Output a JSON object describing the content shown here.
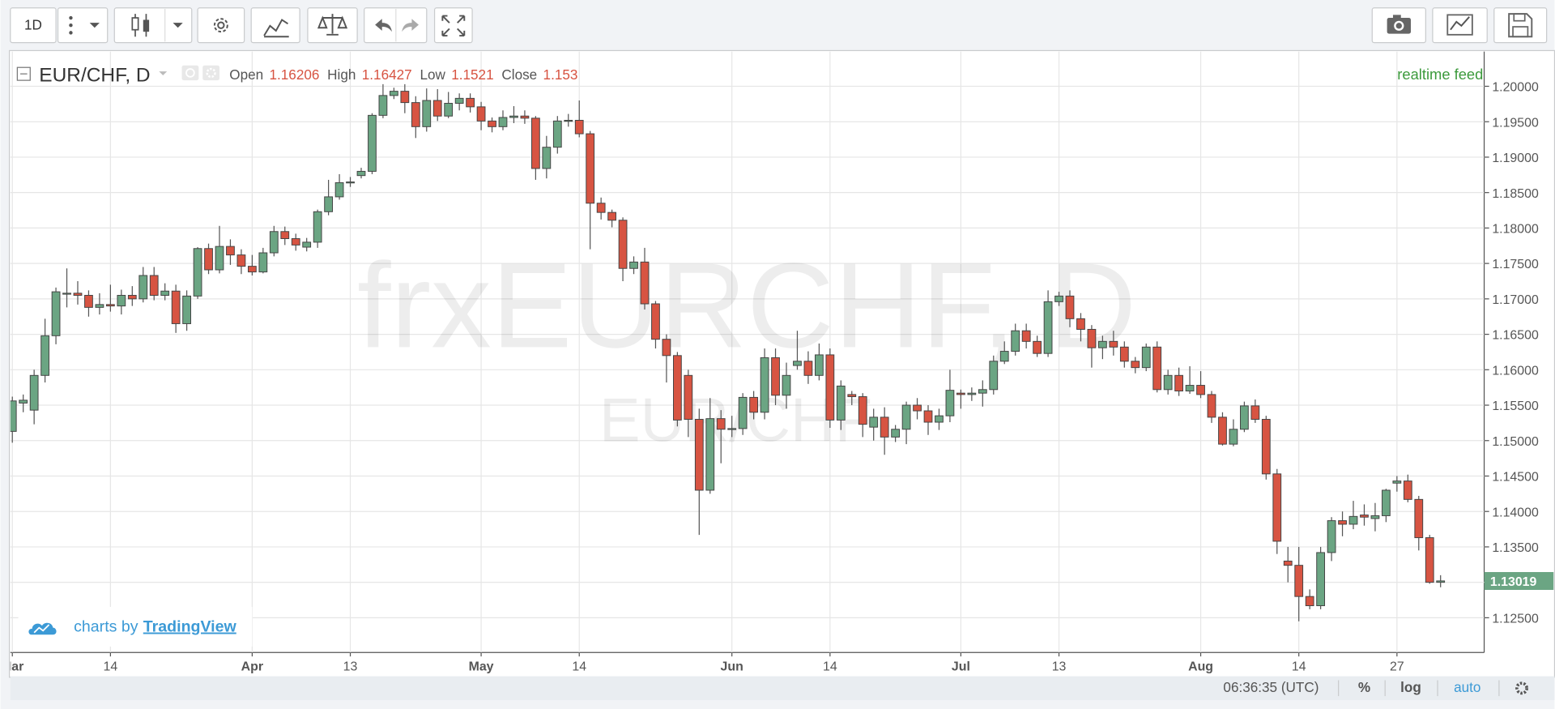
{
  "toolbar": {
    "interval": "1D"
  },
  "realtime": "realtime feed",
  "branding": {
    "prefix": "charts by",
    "name": "TradingView"
  },
  "status": {
    "time": "06:36:35 (UTC)",
    "percent": "%",
    "log": "log",
    "auto": "auto"
  },
  "chart_data": {
    "type": "candlestick",
    "title": "EUR/CHF, D",
    "watermark": "frxEURCHF, D",
    "watermark_sub": "EUR/CHF",
    "legend_labels": [
      "Open",
      "High",
      "Low",
      "Close"
    ],
    "legend_values": [
      1.16206,
      1.16427,
      1.1521,
      1.153
    ],
    "up_color": "#6ba583",
    "down_color": "#d75442",
    "grid": true,
    "last_price": 1.13019,
    "xlim": [
      -0.18,
      135
    ],
    "ylim": [
      1.1201,
      1.2049
    ],
    "xticks": [
      {
        "value": 0,
        "label": "Mar"
      },
      {
        "value": 9,
        "label": "14"
      },
      {
        "value": 22,
        "label": "Apr"
      },
      {
        "value": 31,
        "label": "13"
      },
      {
        "value": 43,
        "label": "May"
      },
      {
        "value": 52,
        "label": "14"
      },
      {
        "value": 66,
        "label": "Jun"
      },
      {
        "value": 75,
        "label": "14"
      },
      {
        "value": 87,
        "label": "Jul"
      },
      {
        "value": 96,
        "label": "13"
      },
      {
        "value": 109,
        "label": "Aug"
      },
      {
        "value": 118,
        "label": "14"
      },
      {
        "value": 127,
        "label": "27"
      }
    ],
    "yticks": [
      {
        "value": 1.125,
        "label": "1.12500"
      },
      {
        "value": 1.13,
        "label": "1.13000"
      },
      {
        "value": 1.135,
        "label": "1.13500"
      },
      {
        "value": 1.14,
        "label": "1.14000"
      },
      {
        "value": 1.145,
        "label": "1.14500"
      },
      {
        "value": 1.15,
        "label": "1.15000"
      },
      {
        "value": 1.155,
        "label": "1.15500"
      },
      {
        "value": 1.16,
        "label": "1.16000"
      },
      {
        "value": 1.165,
        "label": "1.16500"
      },
      {
        "value": 1.17,
        "label": "1.17000"
      },
      {
        "value": 1.175,
        "label": "1.17500"
      },
      {
        "value": 1.18,
        "label": "1.18000"
      },
      {
        "value": 1.185,
        "label": "1.18500"
      },
      {
        "value": 1.19,
        "label": "1.19000"
      },
      {
        "value": 1.195,
        "label": "1.19500"
      },
      {
        "value": 1.2,
        "label": "1.20000"
      }
    ],
    "x": [
      0,
      1,
      2,
      3,
      4,
      5,
      6,
      7,
      8,
      9,
      10,
      11,
      12,
      13,
      14,
      15,
      16,
      17,
      18,
      19,
      20,
      21,
      22,
      23,
      24,
      25,
      26,
      27,
      28,
      29,
      30,
      31,
      32,
      33,
      34,
      35,
      36,
      37,
      38,
      39,
      40,
      41,
      42,
      43,
      44,
      45,
      46,
      47,
      48,
      49,
      50,
      51,
      52,
      53,
      54,
      55,
      56,
      57,
      58,
      59,
      60,
      61,
      62,
      63,
      64,
      65,
      66,
      67,
      68,
      69,
      70,
      71,
      72,
      73,
      74,
      75,
      76,
      77,
      78,
      79,
      80,
      81,
      82,
      83,
      84,
      85,
      86,
      87,
      88,
      89,
      90,
      91,
      92,
      93,
      94,
      95,
      96,
      97,
      98,
      99,
      100,
      101,
      102,
      103,
      104,
      105,
      106,
      107,
      108,
      109,
      110,
      111,
      112,
      113,
      114,
      115,
      116,
      117,
      118,
      119,
      120,
      121,
      122,
      123,
      124,
      125,
      126,
      127,
      128,
      129,
      130,
      131
    ],
    "open": [
      1.1513,
      1.1553,
      1.1543,
      1.1592,
      1.1648,
      1.1708,
      1.1708,
      1.1705,
      1.1688,
      1.1692,
      1.169,
      1.1705,
      1.17,
      1.1733,
      1.1705,
      1.1711,
      1.1665,
      1.1704,
      1.1771,
      1.1741,
      1.1774,
      1.1762,
      1.1746,
      1.1738,
      1.1765,
      1.1795,
      1.1785,
      1.1773,
      1.178,
      1.1823,
      1.1844,
      1.1864,
      1.1874,
      1.188,
      1.1959,
      1.1987,
      1.1993,
      1.1977,
      1.1943,
      1.198,
      1.1958,
      1.1976,
      1.1983,
      1.1971,
      1.1951,
      1.1943,
      1.1956,
      1.1958,
      1.1955,
      1.1884,
      1.1914,
      1.1951,
      1.1952,
      1.1933,
      1.1835,
      1.1822,
      1.1811,
      1.1743,
      1.1752,
      1.1693,
      1.1643,
      1.162,
      1.1592,
      1.153,
      1.143,
      1.1531,
      1.1516,
      1.1517,
      1.1561,
      1.154,
      1.1617,
      1.1564,
      1.1606,
      1.1612,
      1.1592,
      1.1621,
      1.1529,
      1.1565,
      1.1562,
      1.1519,
      1.1533,
      1.1505,
      1.1516,
      1.155,
      1.1542,
      1.1526,
      1.1535,
      1.1567,
      1.1565,
      1.1567,
      1.1572,
      1.1612,
      1.1626,
      1.1655,
      1.164,
      1.1623,
      1.1696,
      1.1704,
      1.1672,
      1.1657,
      1.1631,
      1.164,
      1.1632,
      1.1612,
      1.1603,
      1.1632,
      1.1572,
      1.1592,
      1.157,
      1.1578,
      1.1565,
      1.1533,
      1.1495,
      1.1516,
      1.1549,
      1.153,
      1.1453,
      1.133,
      1.1324,
      1.128,
      1.1267,
      1.1342,
      1.1387,
      1.1382,
      1.1395,
      1.139,
      1.1394,
      1.144,
      1.1443,
      1.1417,
      1.1363,
      1.13
    ],
    "high": [
      1.1562,
      1.1565,
      1.16,
      1.1672,
      1.1716,
      1.1743,
      1.1725,
      1.1712,
      1.1708,
      1.172,
      1.1713,
      1.1718,
      1.1745,
      1.1745,
      1.1722,
      1.172,
      1.1712,
      1.1773,
      1.1778,
      1.1803,
      1.1784,
      1.177,
      1.1762,
      1.1772,
      1.1803,
      1.1802,
      1.1792,
      1.1786,
      1.1826,
      1.1868,
      1.1876,
      1.1872,
      1.1885,
      1.1962,
      1.2003,
      1.1998,
      1.2003,
      1.1986,
      1.1997,
      1.1996,
      1.1992,
      1.199,
      1.199,
      1.1978,
      1.1956,
      1.1966,
      1.1972,
      1.1966,
      1.1958,
      1.193,
      1.1958,
      1.1961,
      1.198,
      1.1937,
      1.1843,
      1.1826,
      1.1815,
      1.176,
      1.1772,
      1.1697,
      1.165,
      1.1625,
      1.16,
      1.1545,
      1.156,
      1.1543,
      1.1535,
      1.1567,
      1.157,
      1.163,
      1.163,
      1.161,
      1.1655,
      1.1626,
      1.1637,
      1.163,
      1.1585,
      1.157,
      1.1567,
      1.1545,
      1.1547,
      1.1522,
      1.1555,
      1.156,
      1.155,
      1.1545,
      1.16,
      1.1572,
      1.1575,
      1.1585,
      1.162,
      1.164,
      1.1665,
      1.1665,
      1.1648,
      1.1712,
      1.171,
      1.1712,
      1.168,
      1.1663,
      1.1648,
      1.1655,
      1.164,
      1.1618,
      1.1637,
      1.164,
      1.16,
      1.1603,
      1.1605,
      1.1598,
      1.157,
      1.154,
      1.153,
      1.1555,
      1.1558,
      1.1535,
      1.146,
      1.135,
      1.135,
      1.129,
      1.135,
      1.1392,
      1.14,
      1.1415,
      1.141,
      1.1412,
      1.1432,
      1.145,
      1.1452,
      1.1422,
      1.1367,
      1.131
    ],
    "low": [
      1.1497,
      1.154,
      1.1523,
      1.1582,
      1.1636,
      1.1688,
      1.1692,
      1.1675,
      1.1678,
      1.1682,
      1.1678,
      1.169,
      1.1695,
      1.1698,
      1.1698,
      1.1652,
      1.1655,
      1.17,
      1.1735,
      1.1736,
      1.1748,
      1.1735,
      1.1733,
      1.1736,
      1.176,
      1.1776,
      1.1768,
      1.1767,
      1.1772,
      1.1818,
      1.184,
      1.1858,
      1.187,
      1.1876,
      1.1955,
      1.1982,
      1.1962,
      1.1927,
      1.1936,
      1.1951,
      1.1955,
      1.1966,
      1.1963,
      1.1938,
      1.1935,
      1.1938,
      1.1948,
      1.1947,
      1.1868,
      1.187,
      1.1905,
      1.1943,
      1.1928,
      1.177,
      1.1812,
      1.1801,
      1.1725,
      1.1735,
      1.1685,
      1.163,
      1.1582,
      1.152,
      1.1505,
      1.1367,
      1.1425,
      1.1468,
      1.1505,
      1.1508,
      1.153,
      1.153,
      1.155,
      1.1545,
      1.16,
      1.158,
      1.1585,
      1.1518,
      1.1515,
      1.155,
      1.1505,
      1.15,
      1.148,
      1.1498,
      1.1495,
      1.153,
      1.1508,
      1.1515,
      1.1526,
      1.1545,
      1.1556,
      1.1548,
      1.1565,
      1.1608,
      1.162,
      1.163,
      1.1618,
      1.1618,
      1.169,
      1.166,
      1.164,
      1.1603,
      1.1615,
      1.162,
      1.1603,
      1.1595,
      1.1598,
      1.1568,
      1.1565,
      1.1563,
      1.1566,
      1.156,
      1.1525,
      1.1493,
      1.1492,
      1.1512,
      1.1525,
      1.1445,
      1.134,
      1.13,
      1.1245,
      1.1262,
      1.1262,
      1.133,
      1.1365,
      1.1375,
      1.138,
      1.1372,
      1.1385,
      1.1428,
      1.1413,
      1.1345,
      1.1298,
      1.1293
    ],
    "close": [
      1.1556,
      1.1557,
      1.1592,
      1.1648,
      1.171,
      1.1708,
      1.1705,
      1.1688,
      1.1692,
      1.169,
      1.1705,
      1.17,
      1.1733,
      1.1705,
      1.1711,
      1.1665,
      1.1704,
      1.1771,
      1.1741,
      1.1774,
      1.1762,
      1.1746,
      1.1738,
      1.1765,
      1.1795,
      1.1785,
      1.1776,
      1.178,
      1.1823,
      1.1844,
      1.1864,
      1.1865,
      1.188,
      1.1959,
      1.1987,
      1.1993,
      1.1977,
      1.1943,
      1.198,
      1.1958,
      1.1976,
      1.1983,
      1.1971,
      1.1951,
      1.1943,
      1.1956,
      1.1958,
      1.1955,
      1.1884,
      1.1914,
      1.1951,
      1.1952,
      1.1933,
      1.1835,
      1.1822,
      1.1811,
      1.1743,
      1.1752,
      1.1693,
      1.1643,
      1.162,
      1.1529,
      1.153,
      1.143,
      1.1531,
      1.1516,
      1.1517,
      1.1561,
      1.154,
      1.1617,
      1.1564,
      1.1592,
      1.1612,
      1.1592,
      1.1621,
      1.1529,
      1.1577,
      1.1562,
      1.1523,
      1.1533,
      1.1505,
      1.1516,
      1.155,
      1.1542,
      1.1526,
      1.1535,
      1.1571,
      1.1565,
      1.1567,
      1.1572,
      1.1612,
      1.1626,
      1.1655,
      1.164,
      1.1623,
      1.1696,
      1.1704,
      1.1672,
      1.1657,
      1.1631,
      1.164,
      1.1632,
      1.1612,
      1.1603,
      1.1632,
      1.1572,
      1.1592,
      1.157,
      1.1578,
      1.1565,
      1.1533,
      1.1495,
      1.1516,
      1.1549,
      1.153,
      1.1453,
      1.1358,
      1.1324,
      1.128,
      1.1267,
      1.1342,
      1.1387,
      1.1382,
      1.1393,
      1.1392,
      1.1394,
      1.143,
      1.1443,
      1.1417,
      1.1363,
      1.13,
      1.1302
    ]
  }
}
